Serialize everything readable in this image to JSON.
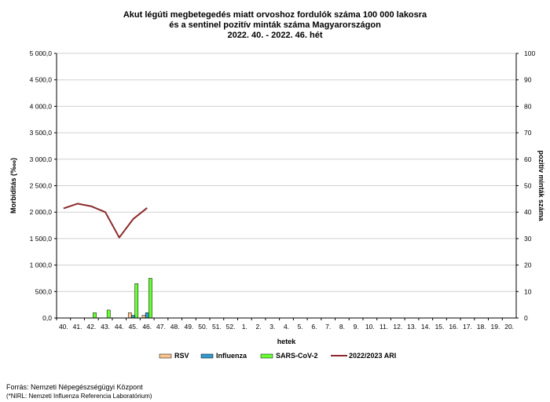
{
  "chart_data": {
    "type": "bar",
    "title_lines": [
      "Akut légúti megbetegedés miatt orvoshoz fordulók száma 100 000 lakosra",
      "és a sentinel pozitív minták száma Magyarországon",
      "2022. 40. - 2022. 46. hét"
    ],
    "xlabel": "hetek",
    "ylabel_left": "Morbiditás (‱)",
    "ylabel_right": "pozitív minták száma",
    "categories": [
      "40.",
      "41.",
      "42.",
      "43.",
      "44.",
      "45.",
      "46.",
      "47.",
      "48.",
      "49.",
      "50.",
      "51.",
      "52.",
      "1.",
      "2.",
      "3.",
      "4.",
      "5.",
      "6.",
      "7.",
      "8.",
      "9.",
      "10.",
      "11.",
      "12.",
      "13.",
      "14.",
      "15.",
      "16.",
      "17.",
      "18.",
      "19.",
      "20."
    ],
    "left_ticks": [
      "0,0",
      "500,0",
      "1 000,0",
      "1 500,0",
      "2 000,0",
      "2 500,0",
      "3 000,0",
      "3 500,0",
      "4 000,0",
      "4 500,0",
      "5 000,0"
    ],
    "right_ticks": [
      "0",
      "10",
      "20",
      "30",
      "40",
      "50",
      "60",
      "70",
      "80",
      "90",
      "100"
    ],
    "ylim_left": [
      0,
      5000
    ],
    "ylim_right": [
      0,
      100
    ],
    "series": [
      {
        "name": "RSV",
        "axis": "right",
        "kind": "bar",
        "color": "#f9c48d",
        "values": [
          0,
          0,
          0,
          0,
          0,
          2,
          1,
          null,
          null,
          null,
          null,
          null,
          null,
          null,
          null,
          null,
          null,
          null,
          null,
          null,
          null,
          null,
          null,
          null,
          null,
          null,
          null,
          null,
          null,
          null,
          null,
          null,
          null
        ]
      },
      {
        "name": "Influenza",
        "axis": "right",
        "kind": "bar",
        "color": "#3399cc",
        "values": [
          0,
          0,
          0,
          0,
          0,
          1,
          2,
          null,
          null,
          null,
          null,
          null,
          null,
          null,
          null,
          null,
          null,
          null,
          null,
          null,
          null,
          null,
          null,
          null,
          null,
          null,
          null,
          null,
          null,
          null,
          null,
          null,
          null
        ]
      },
      {
        "name": "SARS-CoV-2",
        "axis": "right",
        "kind": "bar",
        "color": "#66ff33",
        "values": [
          0,
          0,
          2,
          3,
          0,
          13,
          15,
          null,
          null,
          null,
          null,
          null,
          null,
          null,
          null,
          null,
          null,
          null,
          null,
          null,
          null,
          null,
          null,
          null,
          null,
          null,
          null,
          null,
          null,
          null,
          null,
          null,
          null
        ]
      },
      {
        "name": "2022/2023 ARI",
        "axis": "left",
        "kind": "line",
        "color": "#8b2a2a",
        "values": [
          2070,
          2160,
          2110,
          2000,
          1520,
          1870,
          2080,
          null,
          null,
          null,
          null,
          null,
          null,
          null,
          null,
          null,
          null,
          null,
          null,
          null,
          null,
          null,
          null,
          null,
          null,
          null,
          null,
          null,
          null,
          null,
          null,
          null,
          null
        ]
      }
    ],
    "grid": true,
    "legend_position": "bottom"
  },
  "footer": {
    "source": "Forrás: Nemzeti Népegészségügyi Központ",
    "note": "(*NIRL: Nemzeti Influenza Referencia Laboratórium)"
  }
}
